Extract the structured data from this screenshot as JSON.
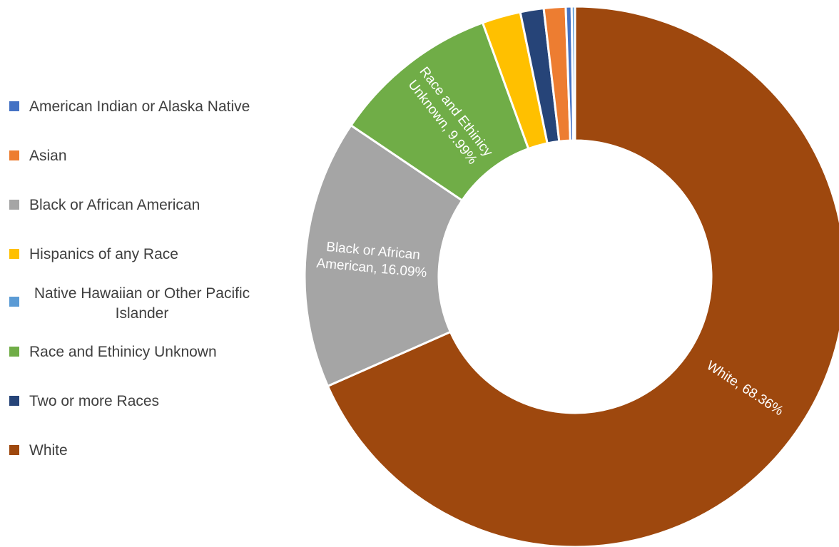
{
  "chart_data": {
    "type": "pie",
    "variant": "donut",
    "legend_position": "left",
    "categories": [
      "American Indian or Alaska Native",
      "Asian",
      "Black or African American",
      "Hispanics of any Race",
      "Native Hawaiian or Other Pacific Islander",
      "Race and Ethinicy Unknown",
      "Two or more Races",
      "White"
    ],
    "values": [
      0.35,
      1.3,
      16.09,
      2.3,
      0.2,
      9.99,
      1.4,
      68.36
    ],
    "colors": [
      "#4472c4",
      "#ed7d31",
      "#a5a5a5",
      "#ffc000",
      "#5b9bd5",
      "#70ad47",
      "#264478",
      "#9e480e"
    ],
    "slice_order": [
      7,
      2,
      5,
      3,
      6,
      1,
      0,
      4
    ],
    "data_labels": [
      {
        "category": "White",
        "lines": [
          "White, 68.36%"
        ]
      },
      {
        "category": "Black or African American",
        "lines": [
          "Black or African",
          "American, 16.09%"
        ]
      },
      {
        "category": "Race and Ethinicy Unknown",
        "lines": [
          "Race and Ethinicy",
          "Unknown, 9.99%"
        ]
      }
    ]
  }
}
